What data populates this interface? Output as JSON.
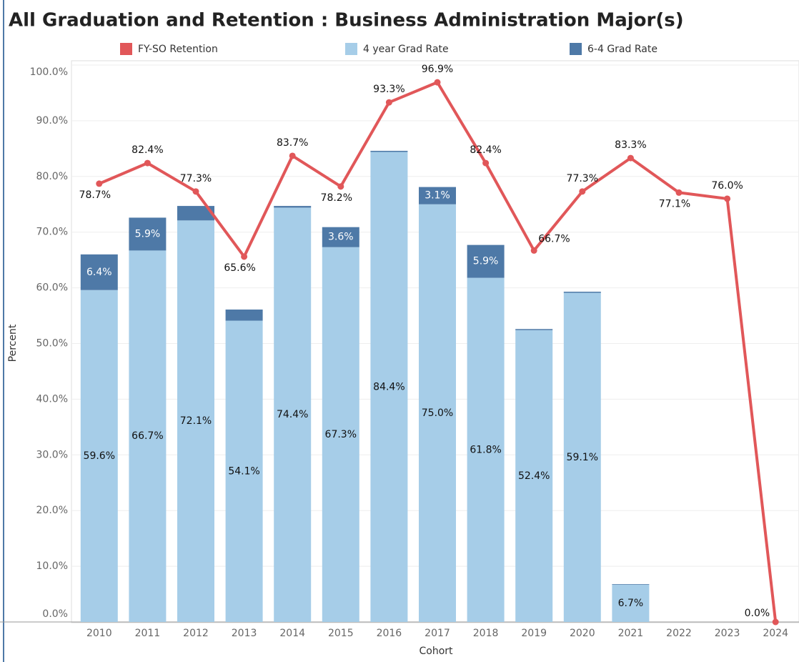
{
  "chart_data": {
    "type": "combo",
    "title": "All Graduation and Retention : Business Administration Major(s)",
    "x_label": "Cohort",
    "y_label": "Percent",
    "categories": [
      "2010",
      "2011",
      "2012",
      "2013",
      "2014",
      "2015",
      "2016",
      "2017",
      "2018",
      "2019",
      "2020",
      "2021",
      "2022",
      "2023",
      "2024"
    ],
    "series": [
      {
        "name": "FY-SO Retention",
        "mark": "line",
        "color": "#e15759",
        "values": [
          78.7,
          82.4,
          77.3,
          65.6,
          83.7,
          78.2,
          93.3,
          96.9,
          82.4,
          66.7,
          77.3,
          83.3,
          77.1,
          76.0,
          0.0
        ],
        "value_labels": [
          "78.7%",
          "82.4%",
          "77.3%",
          "65.6%",
          "83.7%",
          "78.2%",
          "93.3%",
          "96.9%",
          "82.4%",
          "66.7%",
          "77.3%",
          "83.3%",
          "77.1%",
          "76.0%",
          "0.0%"
        ]
      },
      {
        "name": "4 year Grad Rate",
        "mark": "bar",
        "color": "#a6cde8",
        "values": [
          59.6,
          66.7,
          72.1,
          54.1,
          74.4,
          67.3,
          84.4,
          75.0,
          61.8,
          52.4,
          59.1,
          6.7,
          null,
          null,
          null
        ],
        "value_labels": [
          "59.6%",
          "66.7%",
          "72.1%",
          "54.1%",
          "74.4%",
          "67.3%",
          "84.4%",
          "75.0%",
          "61.8%",
          "52.4%",
          "59.1%",
          "6.7%",
          null,
          null,
          null
        ]
      },
      {
        "name": "6-4 Grad Rate",
        "mark": "bar",
        "color": "#4e79a7",
        "values": [
          6.4,
          5.9,
          2.6,
          2.0,
          0.3,
          3.6,
          0.2,
          3.1,
          5.9,
          0.2,
          0.2,
          0.1,
          null,
          null,
          null
        ],
        "value_labels": [
          "6.4%",
          "5.9%",
          null,
          null,
          null,
          "3.6%",
          null,
          "3.1%",
          "5.9%",
          null,
          null,
          null,
          null,
          null,
          null
        ]
      }
    ],
    "ylim": [
      0,
      100
    ],
    "yticks": [
      {
        "value": 0,
        "label": "0.0%"
      },
      {
        "value": 10,
        "label": "10.0%"
      },
      {
        "value": 20,
        "label": "20.0%"
      },
      {
        "value": 30,
        "label": "30.0%"
      },
      {
        "value": 40,
        "label": "40.0%"
      },
      {
        "value": 50,
        "label": "50.0%"
      },
      {
        "value": 60,
        "label": "60.0%"
      },
      {
        "value": 70,
        "label": "70.0%"
      },
      {
        "value": 80,
        "label": "80.0%"
      },
      {
        "value": 90,
        "label": "90.0%"
      },
      {
        "value": 100,
        "label": "100.0%"
      }
    ],
    "grid": true
  }
}
